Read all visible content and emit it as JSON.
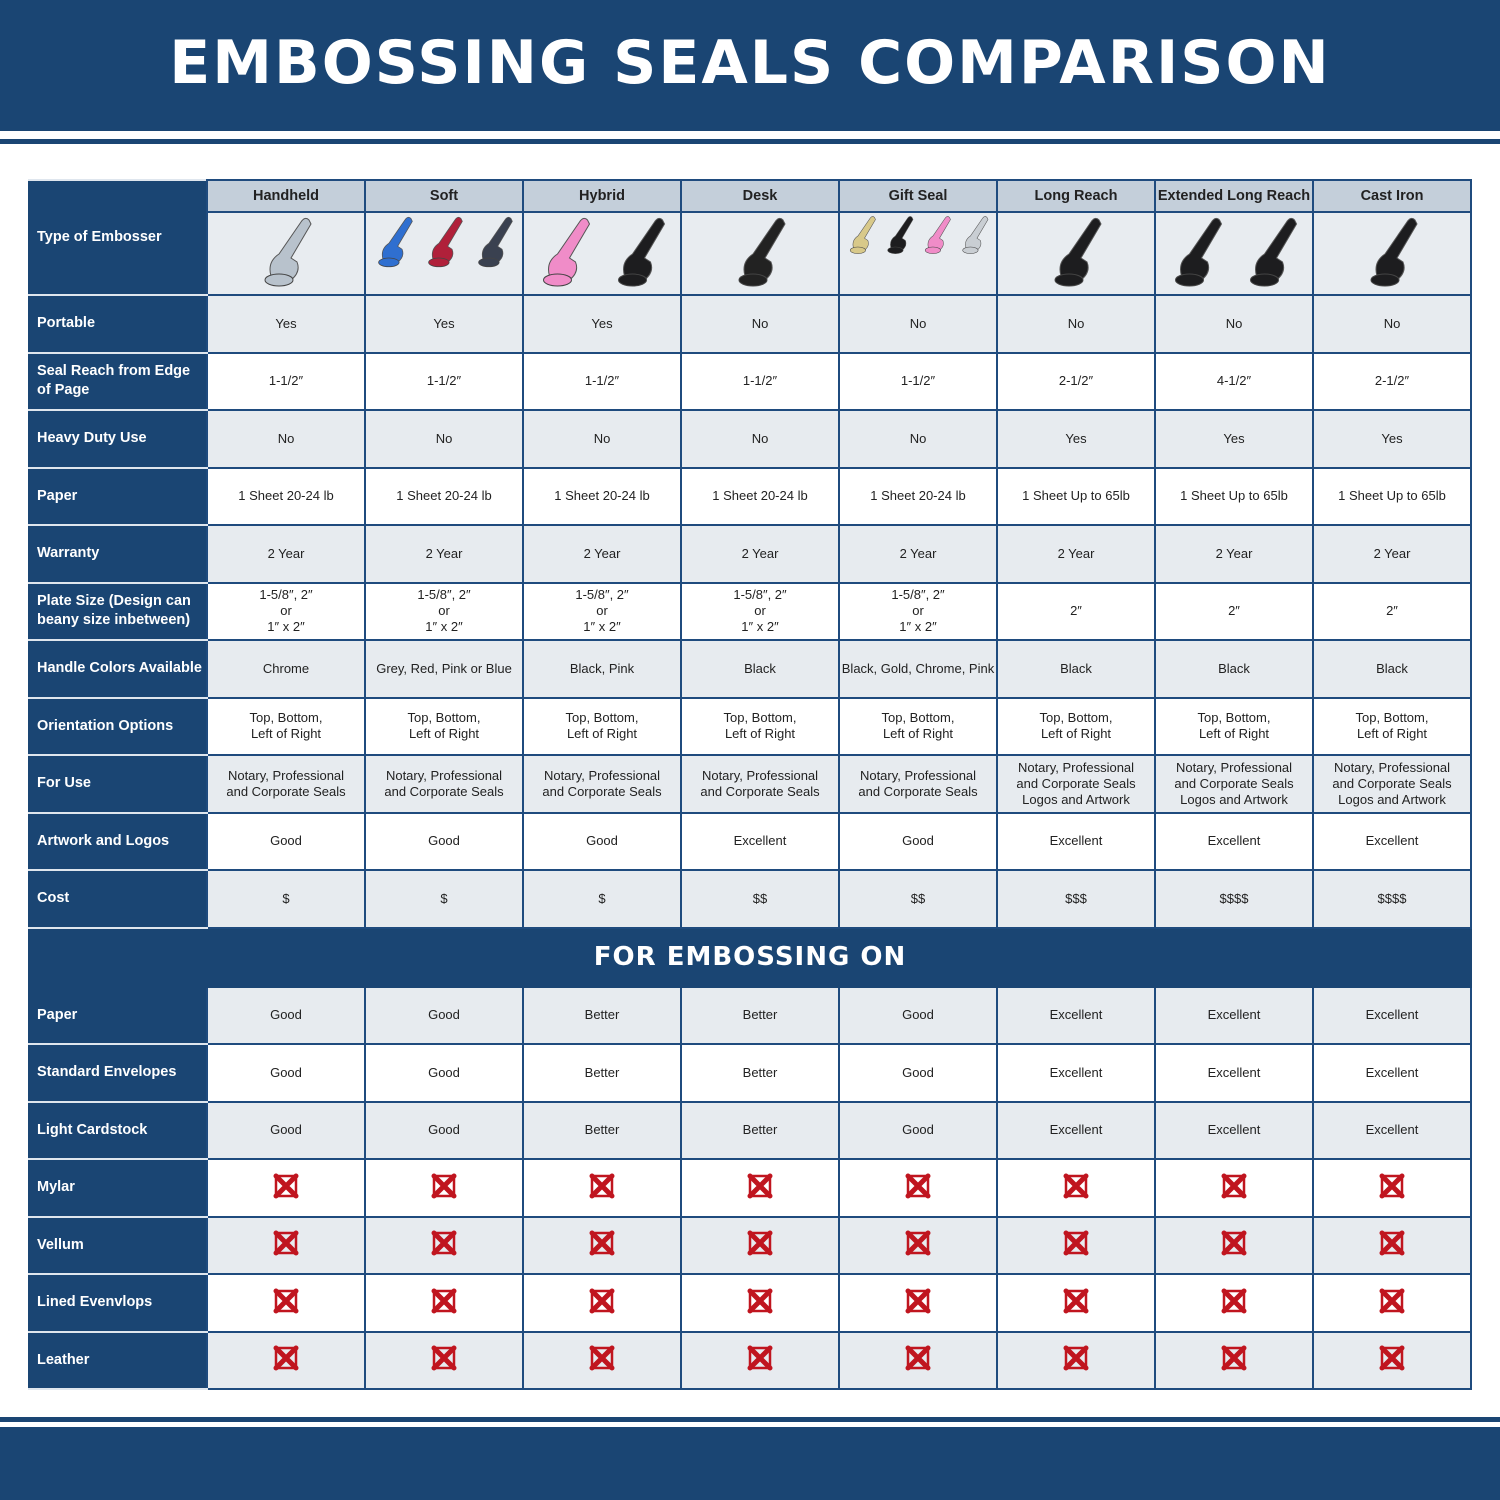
{
  "title": "EMBOSSING SEALS COMPARISON",
  "colors": {
    "brand_blue": "#1a4573",
    "header_gray": "#c4cfda",
    "row_gray": "#e7ebef",
    "x_red": "#c0151f"
  },
  "type_label": "Type of Embosser",
  "columns": [
    "Handheld",
    "Soft",
    "Hybrid",
    "Desk",
    "Gift Seal",
    "Long Reach",
    "Extended Long Reach",
    "Cast Iron"
  ],
  "column_images": [
    {
      "icon": "chrome-handheld-embosser-icon",
      "colors": [
        "#b8c2cc"
      ]
    },
    {
      "icon": "soft-embossers-icon",
      "colors": [
        "#2f6fd0",
        "#b0203a",
        "#3a4150"
      ]
    },
    {
      "icon": "hybrid-embossers-icon",
      "colors": [
        "#f08cc8",
        "#1d1d1f"
      ]
    },
    {
      "icon": "desk-embosser-icon",
      "colors": [
        "#222"
      ]
    },
    {
      "icon": "gift-seal-embossers-icon",
      "colors": [
        "#d8c98a",
        "#1d1d1f",
        "#f08cc8",
        "#c9ced3"
      ]
    },
    {
      "icon": "long-reach-embosser-icon",
      "colors": [
        "#1d1d1f"
      ]
    },
    {
      "icon": "extended-long-reach-embossers-icon",
      "colors": [
        "#1d1d1f",
        "#1d1d1f"
      ]
    },
    {
      "icon": "cast-iron-embosser-icon",
      "colors": [
        "#1d1d1f"
      ]
    }
  ],
  "rows": [
    {
      "label": "Portable",
      "values": [
        "Yes",
        "Yes",
        "Yes",
        "No",
        "No",
        "No",
        "No",
        "No"
      ]
    },
    {
      "label": "Seal Reach from Edge of Page",
      "values": [
        "1-1/2″",
        "1-1/2″",
        "1-1/2″",
        "1-1/2″",
        "1-1/2″",
        "2-1/2″",
        "4-1/2″",
        "2-1/2″"
      ]
    },
    {
      "label": "Heavy Duty Use",
      "values": [
        "No",
        "No",
        "No",
        "No",
        "No",
        "Yes",
        "Yes",
        "Yes"
      ]
    },
    {
      "label": "Paper",
      "values": [
        "1 Sheet 20-24 lb",
        "1 Sheet 20-24 lb",
        "1 Sheet 20-24 lb",
        "1 Sheet 20-24 lb",
        "1 Sheet 20-24 lb",
        "1 Sheet Up to 65lb",
        "1 Sheet Up to 65lb",
        "1 Sheet Up to 65lb"
      ]
    },
    {
      "label": "Warranty",
      "values": [
        "2 Year",
        "2 Year",
        "2 Year",
        "2 Year",
        "2 Year",
        "2 Year",
        "2 Year",
        "2 Year"
      ]
    },
    {
      "label": "Plate Size (Design can beany size inbetween)",
      "values": [
        "1-5/8″, 2″\nor\n1″ x 2″",
        "1-5/8″, 2″\nor\n1″ x 2″",
        "1-5/8″, 2″\nor\n1″ x 2″",
        "1-5/8″, 2″\nor\n1″ x 2″",
        "1-5/8″, 2″\nor\n1″ x 2″",
        "2″",
        "2″",
        "2″"
      ]
    },
    {
      "label": "Handle Colors Available",
      "values": [
        "Chrome",
        "Grey, Red, Pink or Blue",
        "Black, Pink",
        "Black",
        "Black, Gold, Chrome, Pink",
        "Black",
        "Black",
        "Black"
      ]
    },
    {
      "label": "Orientation Options",
      "values": [
        "Top, Bottom,\nLeft of Right",
        "Top, Bottom,\nLeft of Right",
        "Top, Bottom,\nLeft of Right",
        "Top, Bottom,\nLeft of Right",
        "Top, Bottom,\nLeft of Right",
        "Top, Bottom,\nLeft of Right",
        "Top, Bottom,\nLeft of Right",
        "Top, Bottom,\nLeft of Right"
      ]
    },
    {
      "label": "For Use",
      "values": [
        "Notary, Professional\nand Corporate Seals",
        "Notary, Professional\nand Corporate Seals",
        "Notary, Professional\nand Corporate Seals",
        "Notary, Professional\nand Corporate Seals",
        "Notary, Professional\nand Corporate Seals",
        "Notary, Professional\nand Corporate Seals\nLogos and Artwork",
        "Notary, Professional\nand Corporate Seals\nLogos and Artwork",
        "Notary, Professional\nand Corporate Seals\nLogos and Artwork"
      ]
    },
    {
      "label": "Artwork and Logos",
      "values": [
        "Good",
        "Good",
        "Good",
        "Excellent",
        "Good",
        "Excellent",
        "Excellent",
        "Excellent"
      ]
    },
    {
      "label": "Cost",
      "values": [
        "$",
        "$",
        "$",
        "$$",
        "$$",
        "$$$",
        "$$$$",
        "$$$$"
      ]
    }
  ],
  "section_title": "FOR EMBOSSING ON",
  "section_rows": [
    {
      "label": "Paper",
      "values": [
        "Good",
        "Good",
        "Better",
        "Better",
        "Good",
        "Excellent",
        "Excellent",
        "Excellent"
      ]
    },
    {
      "label": "Standard Envelopes",
      "values": [
        "Good",
        "Good",
        "Better",
        "Better",
        "Good",
        "Excellent",
        "Excellent",
        "Excellent"
      ]
    },
    {
      "label": "Light Cardstock",
      "values": [
        "Good",
        "Good",
        "Better",
        "Better",
        "Good",
        "Excellent",
        "Excellent",
        "Excellent"
      ]
    },
    {
      "label": "Mylar",
      "values": [
        "x",
        "x",
        "x",
        "x",
        "x",
        "x",
        "x",
        "x"
      ]
    },
    {
      "label": "Vellum",
      "values": [
        "x",
        "x",
        "x",
        "x",
        "x",
        "x",
        "x",
        "x"
      ]
    },
    {
      "label": "Lined Evenvlops",
      "values": [
        "x",
        "x",
        "x",
        "x",
        "x",
        "x",
        "x",
        "x"
      ]
    },
    {
      "label": "Leather",
      "values": [
        "x",
        "x",
        "x",
        "x",
        "x",
        "x",
        "x",
        "x"
      ]
    }
  ]
}
